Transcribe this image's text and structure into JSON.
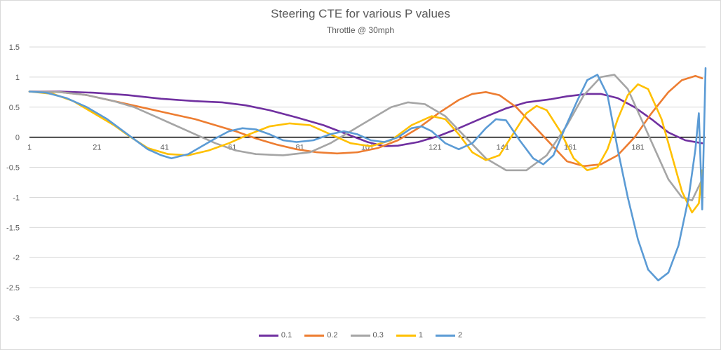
{
  "chart_data": {
    "type": "line",
    "title": "Steering CTE for various P values",
    "subtitle": "Throttle @ 30mph",
    "xlabel": "",
    "ylabel": "",
    "xlim": [
      1,
      200
    ],
    "ylim": [
      -3,
      1.5
    ],
    "y_ticks": [
      "1.5",
      "1",
      "0.5",
      "0",
      "-0.5",
      "-1",
      "-1.5",
      "-2",
      "-2.5",
      "-3"
    ],
    "x_ticks": [
      "1",
      "21",
      "41",
      "61",
      "81",
      "101",
      "121",
      "141",
      "161",
      "181"
    ],
    "legend_position": "bottom",
    "series": [
      {
        "name": "0.1",
        "color": "#7030A0",
        "points": [
          [
            1,
            0.76
          ],
          [
            10,
            0.76
          ],
          [
            20,
            0.74
          ],
          [
            30,
            0.7
          ],
          [
            40,
            0.64
          ],
          [
            50,
            0.6
          ],
          [
            58,
            0.58
          ],
          [
            65,
            0.53
          ],
          [
            72,
            0.45
          ],
          [
            80,
            0.33
          ],
          [
            88,
            0.2
          ],
          [
            95,
            0.05
          ],
          [
            101,
            -0.08
          ],
          [
            106,
            -0.15
          ],
          [
            110,
            -0.14
          ],
          [
            116,
            -0.08
          ],
          [
            122,
            0.02
          ],
          [
            128,
            0.15
          ],
          [
            135,
            0.32
          ],
          [
            142,
            0.48
          ],
          [
            148,
            0.58
          ],
          [
            155,
            0.63
          ],
          [
            160,
            0.68
          ],
          [
            166,
            0.72
          ],
          [
            170,
            0.72
          ],
          [
            175,
            0.65
          ],
          [
            180,
            0.5
          ],
          [
            185,
            0.3
          ],
          [
            190,
            0.08
          ],
          [
            195,
            -0.05
          ],
          [
            200,
            -0.1
          ]
        ]
      },
      {
        "name": "0.2",
        "color": "#ED7D31",
        "points": [
          [
            1,
            0.76
          ],
          [
            10,
            0.75
          ],
          [
            18,
            0.7
          ],
          [
            26,
            0.6
          ],
          [
            34,
            0.5
          ],
          [
            42,
            0.4
          ],
          [
            50,
            0.3
          ],
          [
            56,
            0.2
          ],
          [
            62,
            0.1
          ],
          [
            68,
            -0.02
          ],
          [
            74,
            -0.12
          ],
          [
            80,
            -0.2
          ],
          [
            86,
            -0.25
          ],
          [
            92,
            -0.27
          ],
          [
            98,
            -0.25
          ],
          [
            104,
            -0.18
          ],
          [
            110,
            -0.05
          ],
          [
            116,
            0.15
          ],
          [
            122,
            0.4
          ],
          [
            128,
            0.62
          ],
          [
            132,
            0.72
          ],
          [
            136,
            0.75
          ],
          [
            140,
            0.7
          ],
          [
            145,
            0.5
          ],
          [
            150,
            0.2
          ],
          [
            155,
            -0.1
          ],
          [
            160,
            -0.4
          ],
          [
            165,
            -0.48
          ],
          [
            170,
            -0.45
          ],
          [
            175,
            -0.3
          ],
          [
            180,
            0.0
          ],
          [
            185,
            0.4
          ],
          [
            190,
            0.75
          ],
          [
            194,
            0.95
          ],
          [
            198,
            1.02
          ],
          [
            200,
            0.98
          ]
        ]
      },
      {
        "name": "0.3",
        "color": "#A5A5A5",
        "points": [
          [
            1,
            0.76
          ],
          [
            10,
            0.75
          ],
          [
            18,
            0.7
          ],
          [
            26,
            0.6
          ],
          [
            32,
            0.5
          ],
          [
            38,
            0.35
          ],
          [
            44,
            0.2
          ],
          [
            50,
            0.05
          ],
          [
            56,
            -0.1
          ],
          [
            62,
            -0.22
          ],
          [
            68,
            -0.28
          ],
          [
            76,
            -0.3
          ],
          [
            84,
            -0.25
          ],
          [
            90,
            -0.1
          ],
          [
            96,
            0.1
          ],
          [
            102,
            0.3
          ],
          [
            108,
            0.5
          ],
          [
            113,
            0.58
          ],
          [
            118,
            0.55
          ],
          [
            124,
            0.35
          ],
          [
            130,
            0.0
          ],
          [
            136,
            -0.35
          ],
          [
            142,
            -0.55
          ],
          [
            148,
            -0.55
          ],
          [
            154,
            -0.3
          ],
          [
            160,
            0.2
          ],
          [
            165,
            0.7
          ],
          [
            170,
            1.0
          ],
          [
            174,
            1.04
          ],
          [
            178,
            0.8
          ],
          [
            182,
            0.3
          ],
          [
            186,
            -0.2
          ],
          [
            190,
            -0.7
          ],
          [
            194,
            -1.0
          ],
          [
            197,
            -1.05
          ],
          [
            200,
            -0.7
          ]
        ]
      },
      {
        "name": "1",
        "color": "#FFC000",
        "points": [
          [
            1,
            0.76
          ],
          [
            8,
            0.72
          ],
          [
            14,
            0.6
          ],
          [
            20,
            0.4
          ],
          [
            26,
            0.2
          ],
          [
            31,
            0.0
          ],
          [
            36,
            -0.18
          ],
          [
            42,
            -0.28
          ],
          [
            48,
            -0.3
          ],
          [
            54,
            -0.22
          ],
          [
            60,
            -0.1
          ],
          [
            66,
            0.05
          ],
          [
            72,
            0.18
          ],
          [
            78,
            0.23
          ],
          [
            84,
            0.2
          ],
          [
            90,
            0.05
          ],
          [
            96,
            -0.1
          ],
          [
            102,
            -0.15
          ],
          [
            108,
            -0.05
          ],
          [
            114,
            0.2
          ],
          [
            120,
            0.35
          ],
          [
            124,
            0.3
          ],
          [
            128,
            0.05
          ],
          [
            132,
            -0.25
          ],
          [
            136,
            -0.38
          ],
          [
            140,
            -0.3
          ],
          [
            144,
            0.05
          ],
          [
            148,
            0.4
          ],
          [
            151,
            0.52
          ],
          [
            154,
            0.45
          ],
          [
            158,
            0.1
          ],
          [
            162,
            -0.35
          ],
          [
            166,
            -0.55
          ],
          [
            169,
            -0.5
          ],
          [
            172,
            -0.2
          ],
          [
            175,
            0.3
          ],
          [
            178,
            0.7
          ],
          [
            181,
            0.88
          ],
          [
            184,
            0.8
          ],
          [
            188,
            0.3
          ],
          [
            191,
            -0.3
          ],
          [
            194,
            -0.9
          ],
          [
            197,
            -1.25
          ],
          [
            199,
            -1.1
          ],
          [
            200,
            -0.55
          ]
        ]
      },
      {
        "name": "2",
        "color": "#5B9BD5",
        "points": [
          [
            1,
            0.76
          ],
          [
            6,
            0.74
          ],
          [
            12,
            0.65
          ],
          [
            18,
            0.5
          ],
          [
            24,
            0.3
          ],
          [
            30,
            0.05
          ],
          [
            36,
            -0.2
          ],
          [
            40,
            -0.3
          ],
          [
            43,
            -0.35
          ],
          [
            48,
            -0.28
          ],
          [
            52,
            -0.15
          ],
          [
            56,
            -0.02
          ],
          [
            60,
            0.1
          ],
          [
            64,
            0.15
          ],
          [
            68,
            0.13
          ],
          [
            72,
            0.05
          ],
          [
            76,
            -0.05
          ],
          [
            80,
            -0.08
          ],
          [
            85,
            -0.05
          ],
          [
            90,
            0.05
          ],
          [
            94,
            0.1
          ],
          [
            98,
            0.05
          ],
          [
            102,
            -0.05
          ],
          [
            106,
            -0.08
          ],
          [
            110,
            0.0
          ],
          [
            114,
            0.15
          ],
          [
            117,
            0.18
          ],
          [
            120,
            0.1
          ],
          [
            124,
            -0.1
          ],
          [
            128,
            -0.2
          ],
          [
            132,
            -0.1
          ],
          [
            136,
            0.15
          ],
          [
            139,
            0.3
          ],
          [
            142,
            0.28
          ],
          [
            146,
            -0.05
          ],
          [
            150,
            -0.35
          ],
          [
            153,
            -0.45
          ],
          [
            156,
            -0.3
          ],
          [
            159,
            0.1
          ],
          [
            163,
            0.6
          ],
          [
            166,
            0.95
          ],
          [
            169,
            1.04
          ],
          [
            172,
            0.7
          ],
          [
            175,
            -0.2
          ],
          [
            178,
            -1.0
          ],
          [
            181,
            -1.7
          ],
          [
            184,
            -2.2
          ],
          [
            187,
            -2.38
          ],
          [
            190,
            -2.25
          ],
          [
            193,
            -1.8
          ],
          [
            196,
            -1.0
          ],
          [
            198,
            -0.2
          ],
          [
            199,
            0.4
          ],
          [
            200,
            -1.2
          ],
          [
            201,
            1.15
          ]
        ]
      }
    ]
  }
}
